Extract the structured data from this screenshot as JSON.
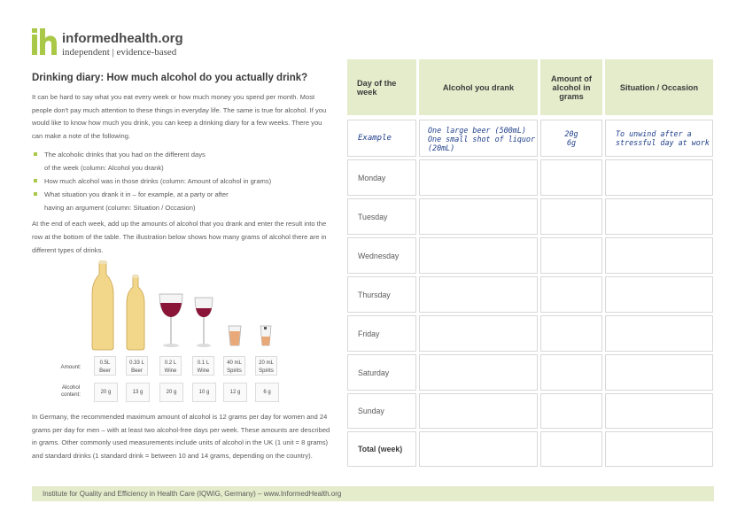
{
  "logo": {
    "name": "informedhealth.org",
    "tagline": "independent | evidence-based"
  },
  "left": {
    "title": "Drinking diary: How much alcohol do you actually drink?",
    "intro": "It can be hard to say what you eat every week or how much money you spend per month. Most people don't pay much attention to these things in everyday life. The same is true for alcohol. If you would like to know how much you drink, you can keep a drinking diary for a few weeks. There you can make a note of the following.",
    "bullets": [
      {
        "line1": "The alcoholic drinks that you had on the different days",
        "line2": "of the week (column: Alcohol you drank)"
      },
      {
        "line1": "How much alcohol was in those drinks (column: Amount of alcohol in grams)",
        "line2": ""
      },
      {
        "line1": "What situation you drank it in – for example, at a party or after",
        "line2": "having an argument (column: Situation / Occasion)"
      }
    ],
    "paragraph2": "At the end of each week, add up the amounts of alcohol that you drank and enter the result into the row at the bottom of the table. The illustration below shows how many grams of alcohol there are in different types of drinks.",
    "paragraph3": "In Germany, the recommended maximum amount of alcohol is 12 grams per day for women and 24 grams per day for men – with at least two alcohol-free days per week. These amounts are described in grams. Other commonly used measurements include units of alcohol in the UK (1 unit = 8 grams) and standard drinks (1 standard drink = between 10 and 14 grams, depending on the country)."
  },
  "illustration": {
    "amount_label": "Amount:",
    "content_label_1": "Alcohol",
    "content_label_2": "content:",
    "drinks": [
      {
        "amount": "0.5L",
        "type": "Beer",
        "content": "20 g"
      },
      {
        "amount": "0.33 L",
        "type": "Beer",
        "content": "13 g"
      },
      {
        "amount": "0.2 L",
        "type": "Wine",
        "content": "20 g"
      },
      {
        "amount": "0.1 L",
        "type": "Wine",
        "content": "10 g"
      },
      {
        "amount": "40 mL",
        "type": "Spirits",
        "content": "12 g"
      },
      {
        "amount": "20 mL",
        "type": "Spirits",
        "content": "6 g"
      }
    ],
    "colors": {
      "beer": "#f2d68a",
      "wine": "#8a1538",
      "spirits": "#e8a878"
    }
  },
  "table": {
    "headers": {
      "day": "Day of the week",
      "alcohol": "Alcohol you drank",
      "amount": "Amount of alcohol in grams",
      "situation": "Situation / Occasion"
    },
    "example": {
      "label": "Example",
      "alcohol_1": "One large beer (500mL)",
      "alcohol_2": "One small shot of liquor",
      "alcohol_3": "(20mL)",
      "amount_1": "20g",
      "amount_2": "6g",
      "situation_1": "To unwind after a",
      "situation_2": "stressful day at work"
    },
    "days": [
      "Monday",
      "Tuesday",
      "Wednesday",
      "Thursday",
      "Friday",
      "Saturday",
      "Sunday"
    ],
    "total": "Total (week)",
    "header_color": "#e4eccb"
  },
  "footer": {
    "text": "Institute for Quality and Efficiency in Health Care (IQWiG, Germany)  –  www.InformedHealth.org"
  }
}
